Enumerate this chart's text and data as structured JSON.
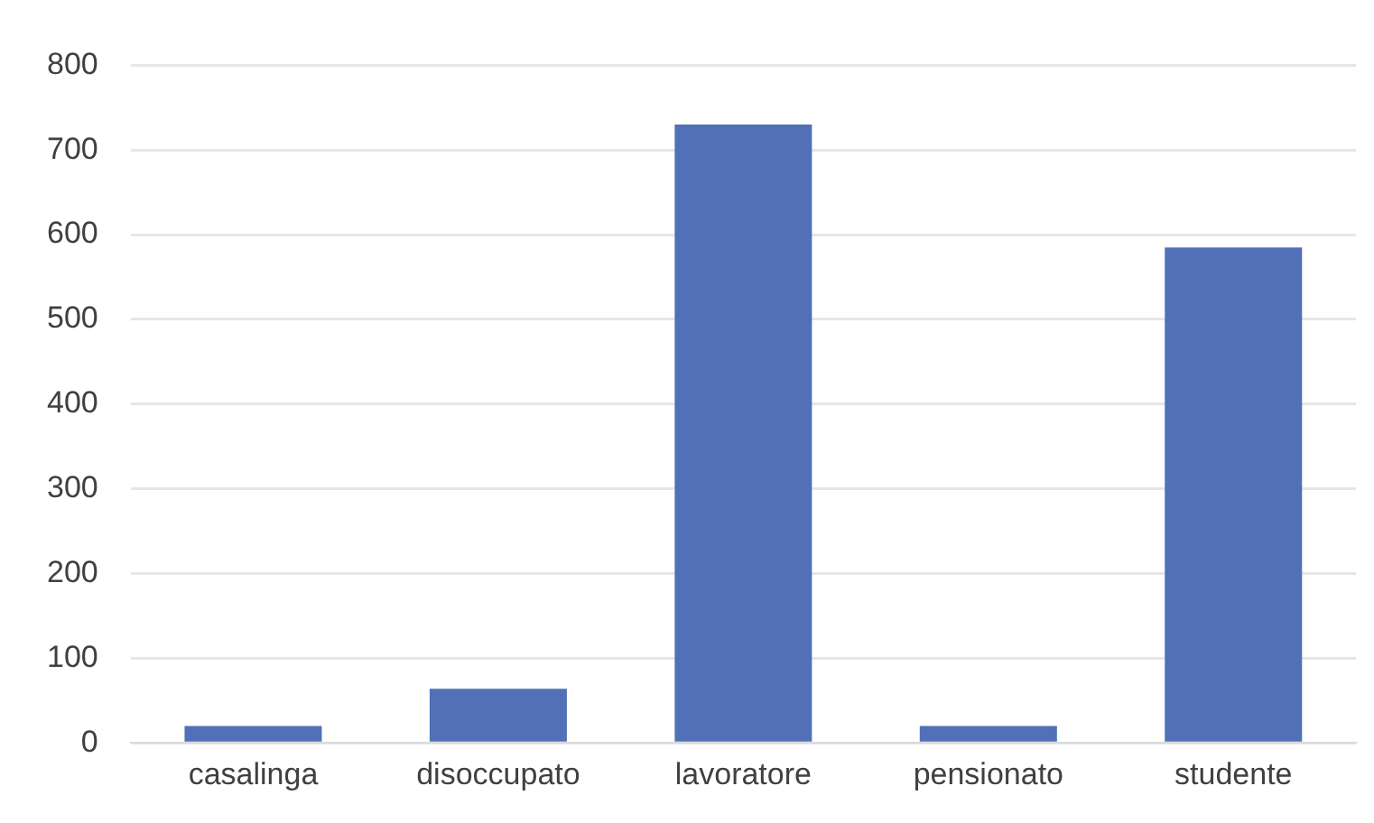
{
  "chart_data": {
    "type": "bar",
    "categories": [
      "casalinga",
      "disoccupato",
      "lavoratore",
      "pensionato",
      "studente"
    ],
    "values": [
      20,
      64,
      730,
      20,
      585
    ],
    "color": "#5170b8",
    "ylim": [
      0,
      800
    ],
    "yticks": [
      0,
      100,
      200,
      300,
      400,
      500,
      600,
      700,
      800
    ],
    "grid": "y"
  }
}
